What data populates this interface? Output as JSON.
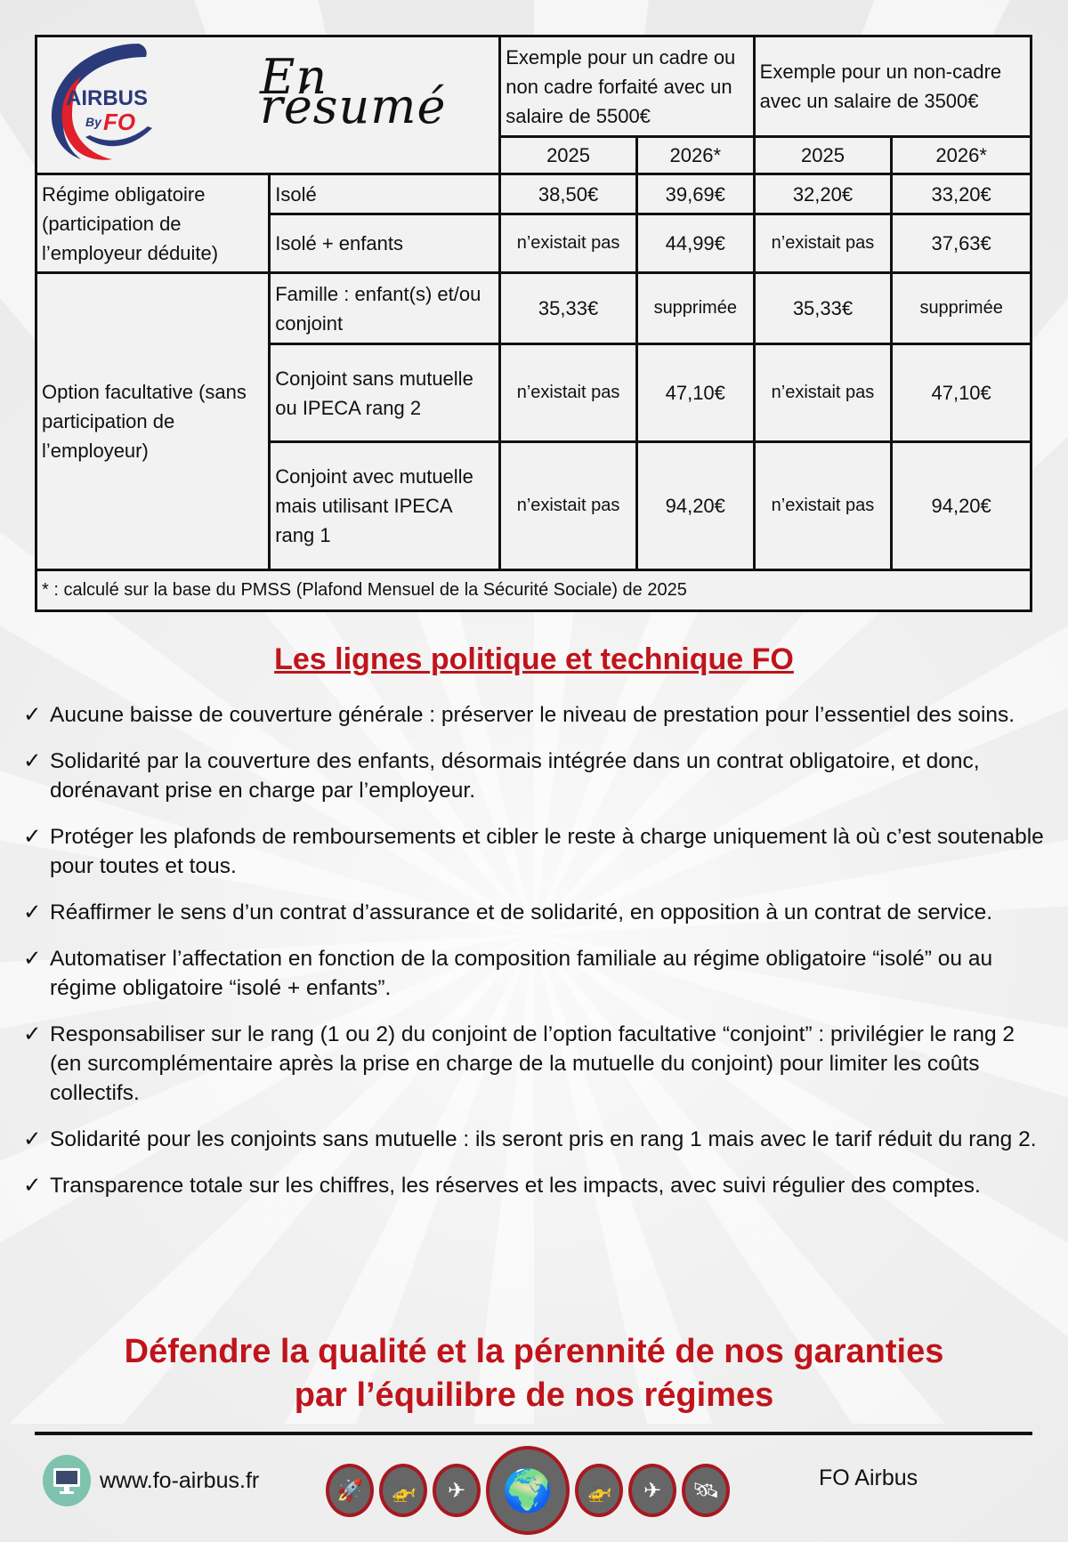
{
  "logo": {
    "text": "AIRBUS By FO",
    "colors": {
      "blue": "#2b3a7a",
      "red": "#e0202a"
    }
  },
  "table": {
    "title": "En résumé",
    "col_groups": [
      "Exemple pour un  cadre ou non cadre forfaité avec un salaire de 5500€",
      "Exemple pour un non-cadre avec un  salaire de 3500€"
    ],
    "years": [
      "2025",
      "2026*",
      "2025",
      "2026*"
    ],
    "groups": [
      {
        "label": "Régime obligatoire (participation de l’employeur déduite)",
        "rows": [
          {
            "label": "Isolé",
            "values": [
              "38,50€",
              "39,69€",
              "32,20€",
              "33,20€"
            ]
          },
          {
            "label": "Isolé + enfants",
            "values": [
              "n’existait pas",
              "44,99€",
              "n’existait pas",
              "37,63€"
            ]
          }
        ]
      },
      {
        "label": "Option facultative (sans participation de l’employeur)",
        "rows": [
          {
            "label": "Famille : enfant(s) et/ou conjoint",
            "values": [
              "35,33€",
              "supprimée",
              "35,33€",
              "supprimée"
            ]
          },
          {
            "label": "Conjoint sans mutuelle ou IPECA rang 2",
            "values": [
              "n’existait pas",
              "47,10€",
              "n’existait pas",
              "47,10€"
            ]
          },
          {
            "label": "Conjoint avec mutuelle mais utilisant IPECA rang 1",
            "values": [
              "n’existait pas",
              "94,20€",
              "n’existait pas",
              "94,20€"
            ]
          }
        ]
      }
    ],
    "footnote": "* : calculé sur la base du PMSS (Plafond Mensuel de la Sécurité Sociale) de 2025"
  },
  "section_title": "Les lignes politique et technique FO",
  "bullets": [
    "Aucune baisse de couverture générale : préserver le niveau de prestation pour l’essentiel des soins.",
    "Solidarité par la couverture des enfants, désormais intégrée dans un contrat obligatoire, et donc, dorénavant prise en charge par l’employeur.",
    "Protéger les plafonds de remboursements et cibler le reste à charge uniquement là où c’est soutenable pour toutes et tous.",
    "Réaffirmer le sens d’un contrat d’assurance et de solidarité, en opposition à un contrat de service.",
    "Automatiser l’affectation en fonction de la composition familiale au régime obligatoire “isolé” ou au régime obligatoire “isolé + enfants”.",
    "Responsabiliser sur le rang (1 ou 2) du conjoint de l’option facultative “conjoint” : privilégier le rang 2 (en surcomplémentaire après la prise en charge de la mutuelle du conjoint) pour limiter les coûts collectifs.",
    "Solidarité pour les conjoints sans mutuelle : ils seront pris en rang 1 mais avec le tarif réduit du rang 2.",
    "Transparence totale sur les chiffres, les réserves et les impacts, avec suivi régulier des comptes."
  ],
  "check_glyph": "✓",
  "final_line1": "Défendre la qualité et la pérennité de nos garanties",
  "final_line2": "par l’équilibre de nos régimes",
  "footer": {
    "website": "www.fo-airbus.fr",
    "brand": "FO Airbus",
    "icons": [
      {
        "name": "rocket",
        "g": "🚀"
      },
      {
        "name": "helicopter",
        "g": "🚁"
      },
      {
        "name": "airplane-top",
        "g": "✈"
      },
      {
        "name": "globe",
        "g": "🌍"
      },
      {
        "name": "helicopter-side",
        "g": "🚁"
      },
      {
        "name": "airplane",
        "g": "✈"
      },
      {
        "name": "satellite",
        "g": "🛰"
      }
    ]
  },
  "colors": {
    "accent": "#c0141b"
  }
}
